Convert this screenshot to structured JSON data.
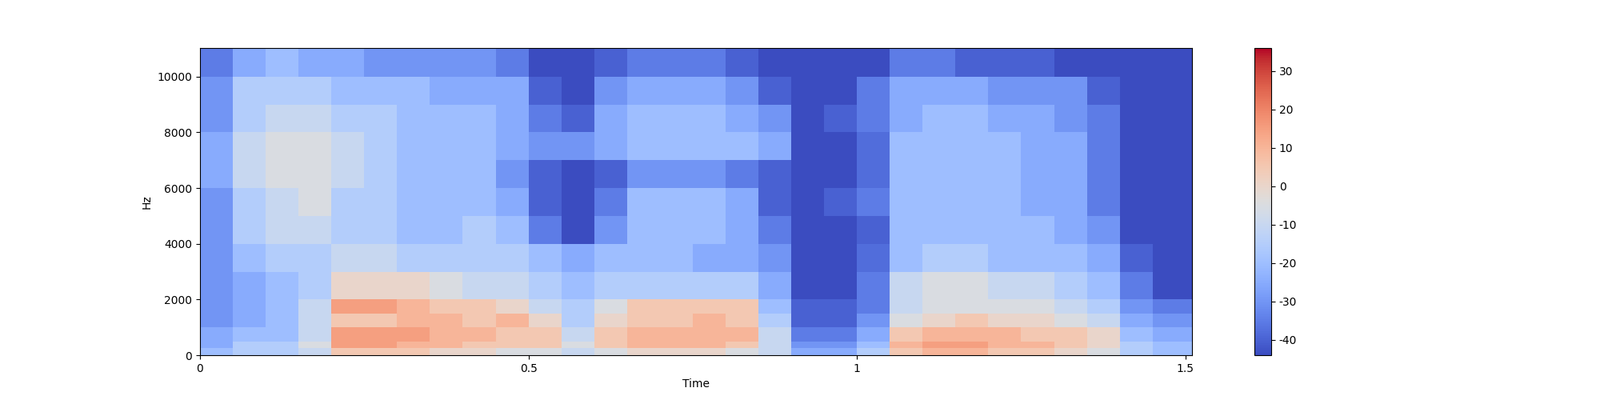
{
  "chart_data": {
    "type": "heatmap",
    "xlabel": "Time",
    "ylabel": "Hz",
    "color": "coolwarm",
    "x_edges": [
      0,
      0.05,
      0.1,
      0.15,
      0.2,
      0.25,
      0.3,
      0.35,
      0.4,
      0.45,
      0.5,
      0.55,
      0.6,
      0.65,
      0.7,
      0.75,
      0.8,
      0.85,
      0.9,
      0.95,
      1.0,
      1.05,
      1.1,
      1.15,
      1.2,
      1.25,
      1.3,
      1.35,
      1.4,
      1.45,
      1.51
    ],
    "y_edges": [
      0,
      250,
      500,
      1000,
      1500,
      2000,
      3000,
      4000,
      5000,
      6000,
      7000,
      8000,
      9000,
      10000,
      11025
    ],
    "cells": [
      [
        -20,
        -15,
        -15,
        -10,
        5,
        5,
        5,
        0,
        0,
        -5,
        -5,
        -10,
        -5,
        0,
        0,
        0,
        -5,
        -10,
        -25,
        -25,
        -15,
        5,
        10,
        10,
        5,
        5,
        0,
        -5,
        -15,
        -20
      ],
      [
        -25,
        -15,
        -15,
        -5,
        15,
        15,
        10,
        10,
        5,
        5,
        5,
        -5,
        5,
        10,
        10,
        10,
        5,
        -10,
        -30,
        -30,
        -20,
        10,
        15,
        15,
        10,
        10,
        5,
        0,
        -15,
        -20
      ],
      [
        -25,
        -20,
        -20,
        -10,
        15,
        15,
        15,
        10,
        10,
        5,
        5,
        -10,
        5,
        10,
        10,
        10,
        10,
        -10,
        -35,
        -35,
        -25,
        5,
        10,
        10,
        10,
        5,
        5,
        0,
        -20,
        -25
      ],
      [
        -30,
        -25,
        -20,
        -10,
        5,
        5,
        10,
        10,
        5,
        10,
        0,
        -15,
        0,
        5,
        5,
        10,
        5,
        -15,
        -40,
        -40,
        -30,
        -5,
        0,
        5,
        0,
        0,
        -5,
        -10,
        -25,
        -30
      ],
      [
        -30,
        -25,
        -20,
        -10,
        15,
        15,
        10,
        5,
        5,
        0,
        -10,
        -15,
        -5,
        5,
        5,
        5,
        5,
        -20,
        -40,
        -40,
        -35,
        -10,
        -5,
        -5,
        -5,
        -5,
        -10,
        -15,
        -30,
        -35
      ],
      [
        -30,
        -25,
        -20,
        -15,
        0,
        0,
        0,
        -5,
        -10,
        -10,
        -15,
        -20,
        -15,
        -15,
        -15,
        -15,
        -15,
        -25,
        -44,
        -44,
        -35,
        -10,
        -5,
        -5,
        -10,
        -10,
        -15,
        -20,
        -35,
        -44
      ],
      [
        -30,
        -20,
        -15,
        -15,
        -10,
        -10,
        -15,
        -15,
        -15,
        -15,
        -20,
        -25,
        -20,
        -20,
        -20,
        -25,
        -25,
        -30,
        -44,
        -44,
        -38,
        -20,
        -15,
        -15,
        -20,
        -20,
        -20,
        -25,
        -40,
        -44
      ],
      [
        -30,
        -15,
        -10,
        -10,
        -15,
        -15,
        -20,
        -20,
        -15,
        -20,
        -35,
        -44,
        -30,
        -20,
        -20,
        -20,
        -25,
        -35,
        -44,
        -44,
        -40,
        -20,
        -20,
        -20,
        -20,
        -20,
        -25,
        -30,
        -44,
        -44
      ],
      [
        -30,
        -15,
        -10,
        -5,
        -15,
        -15,
        -20,
        -20,
        -20,
        -25,
        -40,
        -44,
        -35,
        -20,
        -20,
        -20,
        -25,
        -40,
        -44,
        -40,
        -35,
        -20,
        -20,
        -20,
        -20,
        -25,
        -25,
        -35,
        -44,
        -44
      ],
      [
        -25,
        -10,
        -5,
        -5,
        -10,
        -15,
        -20,
        -20,
        -20,
        -30,
        -40,
        -44,
        -40,
        -30,
        -30,
        -30,
        -35,
        -40,
        -44,
        -44,
        -38,
        -20,
        -20,
        -20,
        -20,
        -25,
        -25,
        -35,
        -44,
        -44
      ],
      [
        -25,
        -10,
        -5,
        -5,
        -10,
        -15,
        -20,
        -20,
        -20,
        -25,
        -30,
        -30,
        -25,
        -20,
        -20,
        -20,
        -20,
        -25,
        -44,
        -44,
        -38,
        -20,
        -20,
        -20,
        -20,
        -25,
        -25,
        -35,
        -44,
        -44
      ],
      [
        -30,
        -15,
        -10,
        -10,
        -15,
        -15,
        -20,
        -20,
        -20,
        -25,
        -35,
        -40,
        -25,
        -20,
        -20,
        -20,
        -25,
        -30,
        -44,
        -40,
        -35,
        -25,
        -20,
        -20,
        -25,
        -25,
        -30,
        -35,
        -44,
        -44
      ],
      [
        -30,
        -15,
        -15,
        -15,
        -20,
        -20,
        -20,
        -25,
        -25,
        -25,
        -40,
        -44,
        -30,
        -25,
        -25,
        -25,
        -30,
        -40,
        -44,
        -44,
        -35,
        -25,
        -25,
        -25,
        -30,
        -30,
        -30,
        -40,
        -44,
        -44
      ],
      [
        -35,
        -25,
        -20,
        -25,
        -25,
        -30,
        -30,
        -30,
        -30,
        -35,
        -44,
        -44,
        -40,
        -35,
        -35,
        -35,
        -40,
        -44,
        -44,
        -44,
        -44,
        -35,
        -35,
        -40,
        -40,
        -40,
        -44,
        -44,
        -44,
        -44
      ]
    ],
    "xlim": [
      0,
      1.51
    ],
    "ylim": [
      0,
      11025
    ],
    "xticks": [
      0,
      0.5,
      1,
      1.5
    ],
    "yticks": [
      0,
      2000,
      4000,
      6000,
      8000,
      10000
    ],
    "colorbar_range": [
      -44,
      36
    ],
    "colorbar_ticks": [
      -40,
      -30,
      -20,
      -10,
      0,
      10,
      20,
      30
    ]
  }
}
